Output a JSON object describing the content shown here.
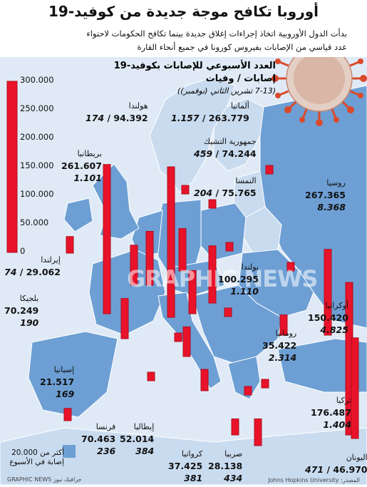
{
  "title": "أوروبا تكافح موجة جديدة من كوفيد-19",
  "subtitle": "بدأت الدول الأوروبية اتخاذ إجراءات إغلاق جديدة بينما تكافح الحكومات لاحتواء عدد قياسي من الإصابات بفيروس كورونا في جميع أنحاء القارة",
  "legend": {
    "heading": "العدد الأسبوعي للإصابات بكوفيد-19",
    "subheading": "إصابات / وفيات",
    "period": "(7-13 تشرين الثاني (نوفمبر))"
  },
  "scale": {
    "max": 300000,
    "ticks": [
      "300.000",
      "250.000",
      "200.000",
      "150.000",
      "100.000",
      "50.000",
      "0"
    ],
    "tick_values": [
      300000,
      250000,
      200000,
      150000,
      100000,
      50000,
      0
    ]
  },
  "countries": [
    {
      "name": "روسيا",
      "cases": "267.365",
      "deaths": "8.368",
      "cases_value": 267365
    },
    {
      "name": "ألمانيا",
      "cases": "263.779",
      "deaths": "1.157",
      "cases_value": 263779
    },
    {
      "name": "بريطانيا",
      "cases": "261.607",
      "deaths": "1.101",
      "cases_value": 261607
    },
    {
      "name": "فرنسا",
      "cases": "70.463",
      "deaths": "236",
      "cases_value": 70463
    },
    {
      "name": "إيطاليا",
      "cases": "52.014",
      "deaths": "384",
      "cases_value": 52014
    },
    {
      "name": "تركيا",
      "cases": "176.487",
      "deaths": "1.404",
      "cases_value": 176487
    },
    {
      "name": "أوكرانيا",
      "cases": "150.420",
      "deaths": "4.825",
      "cases_value": 150420
    },
    {
      "name": "بولندا",
      "cases": "100.295",
      "deaths": "1.110",
      "cases_value": 100295
    },
    {
      "name": "هولندا",
      "cases": "94.392",
      "deaths": "174",
      "cases_value": 94392
    },
    {
      "name": "النمسا",
      "cases": "75.765",
      "deaths": "204",
      "cases_value": 75765
    },
    {
      "name": "جمهورية التشيك",
      "cases": "74.244",
      "deaths": "459",
      "cases_value": 74244
    },
    {
      "name": "بلجيكا",
      "cases": "70.249",
      "deaths": "190",
      "cases_value": 70249
    },
    {
      "name": "إيرلندا",
      "cases": "29.062",
      "deaths": "74",
      "cases_value": 29062
    },
    {
      "name": "اليونان",
      "cases": "46.970",
      "deaths": "471",
      "cases_value": 46970
    },
    {
      "name": "كرواتيا",
      "cases": "37.425",
      "deaths": "381",
      "cases_value": 37425
    },
    {
      "name": "صربيا",
      "cases": "28.138",
      "deaths": "434",
      "cases_value": 28138
    },
    {
      "name": "رومانيا",
      "cases": "35.422",
      "deaths": "2.314",
      "cases_value": 35422
    },
    {
      "name": "إسبانيا",
      "cases": "21.517",
      "deaths": "169",
      "cases_value": 21517
    }
  ],
  "key": "أكثر من 20.000 إصابة في الأسبوع",
  "credit": "GRAPHIC NEWS جرافيك نيوز",
  "source": "المصدر: Johns Hopkins University",
  "watermark": "GRAPHIC NEWS",
  "colors": {
    "sea": "#dfeaf6",
    "land_hot": "#6d9fd4",
    "land": "#c9dbef",
    "bar": "#e8132a",
    "bar_dark": "#b00d1e",
    "virus": "#d94a2c"
  }
}
